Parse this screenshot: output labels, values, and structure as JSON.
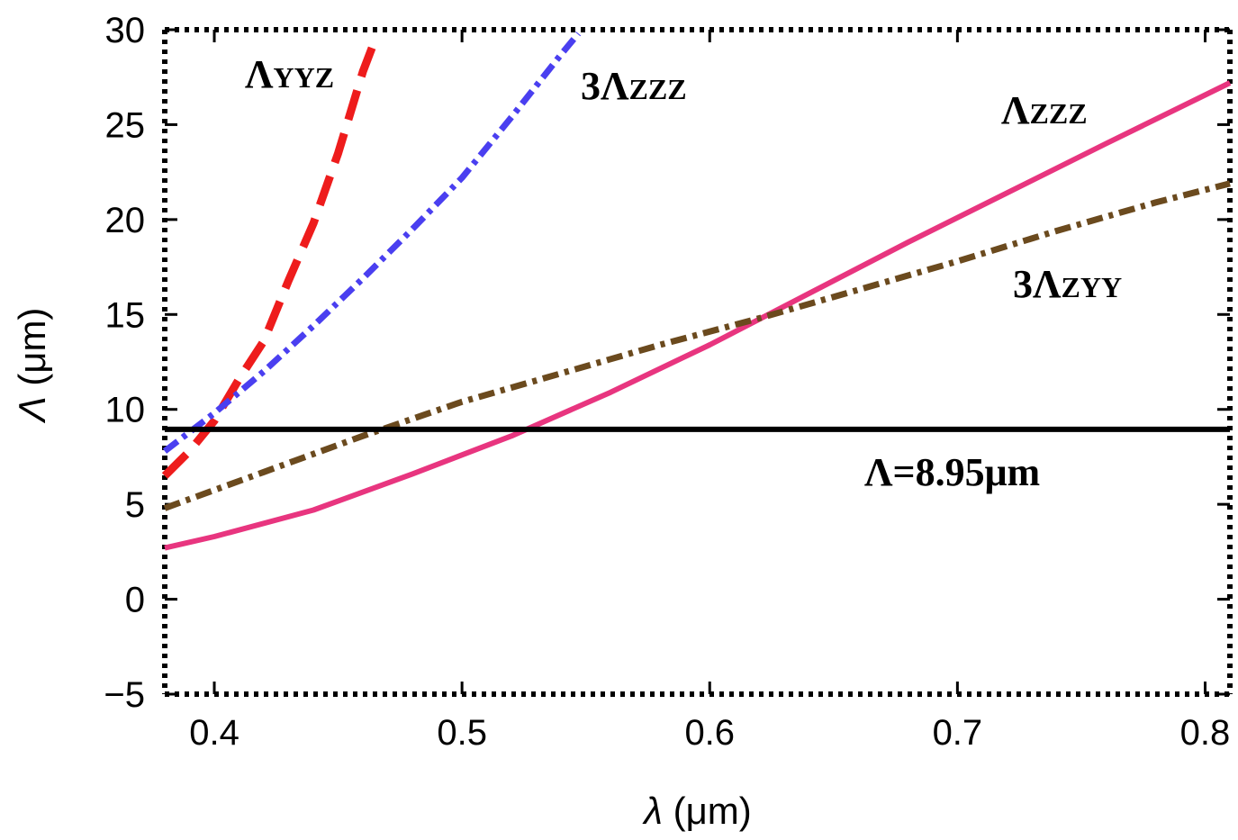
{
  "chart_data": {
    "type": "line",
    "xlabel_symbol": "λ",
    "xlabel_unit": "(μm)",
    "ylabel_symbol": "Λ",
    "ylabel_unit": "(μm)",
    "xlim": [
      0.38,
      0.81
    ],
    "ylim": [
      -5,
      30
    ],
    "x_ticks": [
      0.4,
      0.5,
      0.6,
      0.7,
      0.8
    ],
    "x_tick_labels": [
      "0.4",
      "0.5",
      "0.6",
      "0.7",
      "0.8"
    ],
    "y_ticks": [
      -5,
      0,
      5,
      10,
      15,
      20,
      25,
      30
    ],
    "y_tick_labels": [
      "−5",
      "0",
      "5",
      "10",
      "15",
      "20",
      "25",
      "30"
    ],
    "grid": false,
    "legend": "none",
    "series": [
      {
        "label_prefix": "",
        "label_main": "Λ",
        "label_sub": "YYZ",
        "color": "#ee1c1c",
        "dash": "dashed",
        "x": [
          0.38,
          0.39,
          0.4,
          0.41,
          0.42,
          0.43,
          0.44,
          0.45,
          0.46,
          0.465
        ],
        "y": [
          6.5,
          7.8,
          9.4,
          11.6,
          13.6,
          16.8,
          19.8,
          23.5,
          27.8,
          29.5
        ]
      },
      {
        "label_prefix": "3",
        "label_main": "Λ",
        "label_sub": "ZZZ",
        "color": "#4a3ff0",
        "dash": "dashdot",
        "x": [
          0.38,
          0.4,
          0.42,
          0.44,
          0.46,
          0.48,
          0.5,
          0.52,
          0.54,
          0.547
        ],
        "y": [
          7.8,
          9.8,
          12.0,
          14.4,
          16.9,
          19.5,
          22.2,
          25.4,
          28.7,
          29.8
        ]
      },
      {
        "label_prefix": "",
        "label_main": "Λ",
        "label_sub": "ZZZ",
        "color": "#e8357f",
        "dash": "solid",
        "x": [
          0.38,
          0.4,
          0.44,
          0.48,
          0.52,
          0.56,
          0.6,
          0.64,
          0.68,
          0.72,
          0.76,
          0.81
        ],
        "y": [
          2.7,
          3.3,
          4.7,
          6.6,
          8.6,
          10.9,
          13.4,
          16.1,
          18.8,
          21.4,
          24.0,
          27.2
        ]
      },
      {
        "label_prefix": "3",
        "label_main": "Λ",
        "label_sub": "ZYY",
        "color": "#6b4a1e",
        "dash": "dashdot",
        "x": [
          0.38,
          0.42,
          0.46,
          0.5,
          0.54,
          0.58,
          0.62,
          0.66,
          0.7,
          0.74,
          0.78,
          0.81
        ],
        "y": [
          4.8,
          6.7,
          8.6,
          10.4,
          11.9,
          13.4,
          14.8,
          16.3,
          17.8,
          19.4,
          20.9,
          21.9
        ]
      },
      {
        "label_prefix": "",
        "label_main": "Λ=8.95μm",
        "label_sub": "",
        "color": "#000000",
        "dash": "solid",
        "x": [
          0.38,
          0.81
        ],
        "y": [
          8.95,
          8.95
        ]
      }
    ]
  }
}
